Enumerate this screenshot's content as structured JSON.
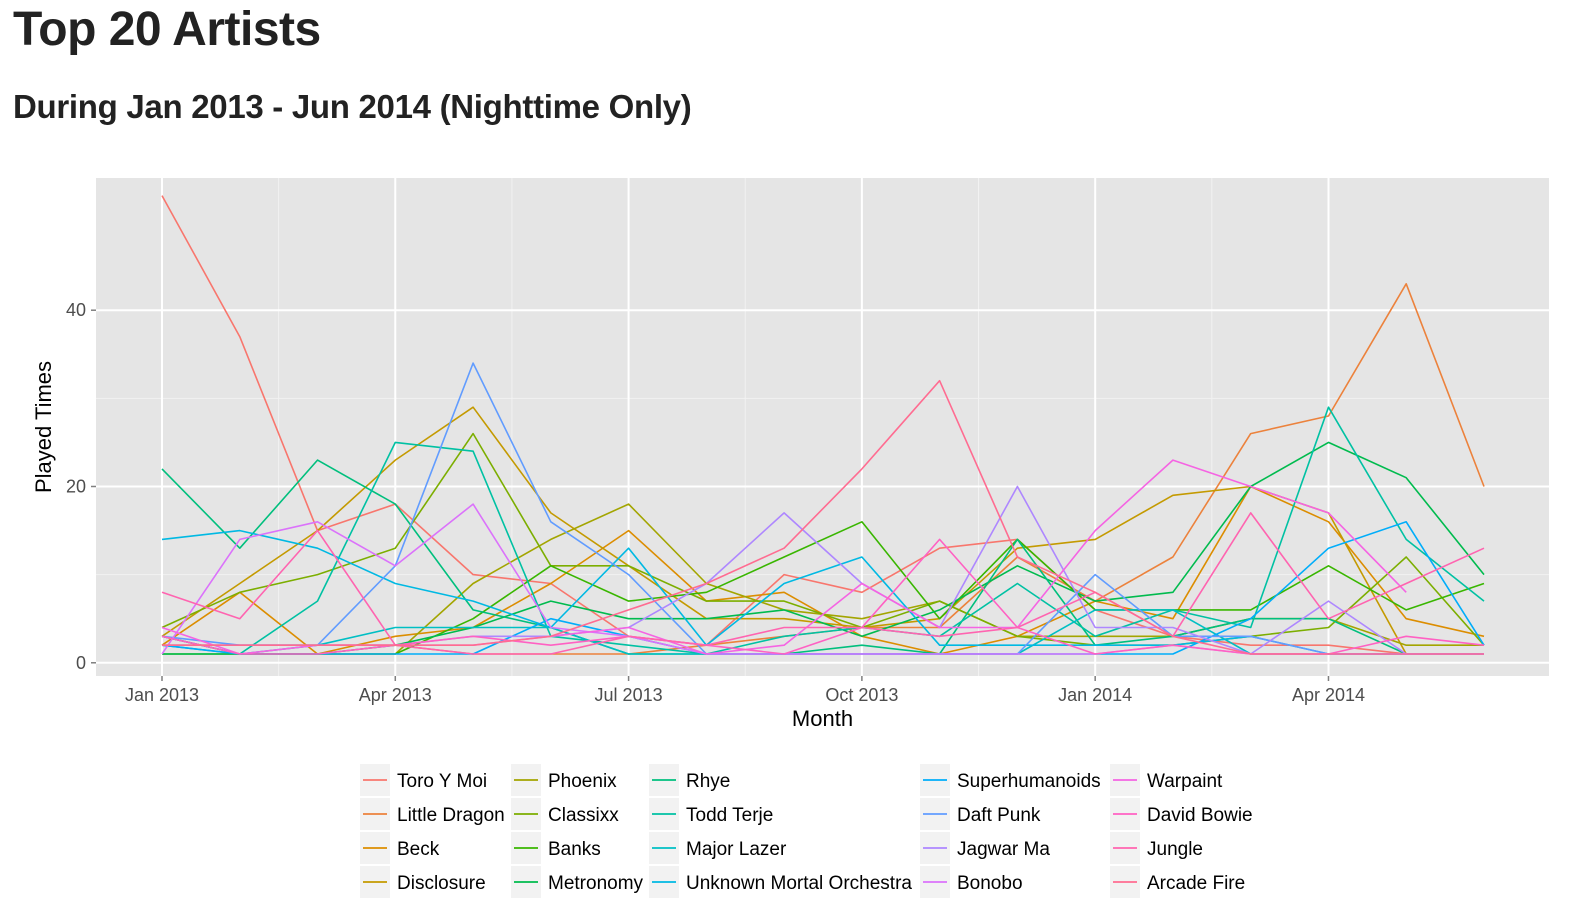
{
  "header": {
    "title": "Top 20 Artists",
    "subtitle": "During Jan 2013 - Jun 2014 (Nighttime Only)"
  },
  "chart_data": {
    "type": "line",
    "xlabel": "Month",
    "ylabel": "Played Times",
    "x": [
      "2013-01",
      "2013-02",
      "2013-03",
      "2013-04",
      "2013-05",
      "2013-06",
      "2013-07",
      "2013-08",
      "2013-09",
      "2013-10",
      "2013-11",
      "2013-12",
      "2014-01",
      "2014-02",
      "2014-03",
      "2014-04",
      "2014-05",
      "2014-06"
    ],
    "x_ticks": [
      {
        "value": "2013-01",
        "label": "Jan 2013"
      },
      {
        "value": "2013-04",
        "label": "Apr 2013"
      },
      {
        "value": "2013-07",
        "label": "Jul 2013"
      },
      {
        "value": "2013-10",
        "label": "Oct 2013"
      },
      {
        "value": "2014-01",
        "label": "Jan 2014"
      },
      {
        "value": "2014-04",
        "label": "Apr 2014"
      }
    ],
    "y_ticks": [
      0,
      20,
      40
    ],
    "ylim": [
      -1.5,
      55
    ],
    "grid": true,
    "legend_position": "bottom",
    "series": [
      {
        "name": "Toro Y Moi",
        "color": "#F8766D",
        "values": [
          53,
          37,
          15,
          18,
          10,
          9,
          3,
          2,
          10,
          8,
          13,
          14,
          6,
          3,
          2,
          2,
          1,
          1
        ]
      },
      {
        "name": "Little Dragon",
        "color": "#EC823C",
        "values": [
          2,
          2,
          2,
          2,
          1,
          1,
          1,
          2,
          3,
          4,
          4,
          12,
          7,
          12,
          26,
          28,
          43,
          20
        ]
      },
      {
        "name": "Beck",
        "color": "#DC8D00",
        "values": [
          2,
          8,
          1,
          3,
          4,
          9,
          15,
          7,
          8,
          3,
          1,
          3,
          7,
          5,
          20,
          16,
          5,
          3
        ]
      },
      {
        "name": "Disclosure",
        "color": "#C49A00",
        "values": [
          3,
          9,
          15,
          23,
          29,
          17,
          11,
          5,
          5,
          4,
          5,
          13,
          14,
          19,
          20,
          17,
          1,
          1
        ]
      },
      {
        "name": "Phoenix",
        "color": "#A3A500",
        "values": [
          3,
          1,
          1,
          1,
          9,
          14,
          18,
          9,
          6,
          5,
          7,
          3,
          3,
          3,
          5,
          5,
          2,
          2
        ]
      },
      {
        "name": "Classixx",
        "color": "#7CAE00",
        "values": [
          4,
          8,
          10,
          13,
          26,
          11,
          11,
          7,
          7,
          4,
          7,
          3,
          2,
          2,
          3,
          4,
          12,
          2
        ]
      },
      {
        "name": "Banks",
        "color": "#39B600",
        "values": [
          1,
          1,
          1,
          1,
          5,
          11,
          7,
          8,
          12,
          16,
          5,
          14,
          6,
          6,
          6,
          11,
          6,
          9
        ]
      },
      {
        "name": "Metronomy",
        "color": "#00BB4E",
        "values": [
          1,
          1,
          1,
          2,
          4,
          7,
          5,
          5,
          6,
          3,
          6,
          11,
          7,
          8,
          20,
          25,
          21,
          10
        ]
      },
      {
        "name": "Rhye",
        "color": "#00BF7D",
        "values": [
          22,
          13,
          23,
          18,
          6,
          4,
          1,
          1,
          1,
          2,
          1,
          14,
          2,
          3,
          5,
          5,
          1,
          1
        ]
      },
      {
        "name": "Todd Terje",
        "color": "#00C1A3",
        "values": [
          3,
          1,
          7,
          25,
          24,
          3,
          2,
          1,
          3,
          4,
          3,
          9,
          3,
          6,
          4,
          29,
          14,
          7
        ]
      },
      {
        "name": "Major Lazer",
        "color": "#00BFC4",
        "values": [
          2,
          1,
          2,
          4,
          4,
          4,
          1,
          1,
          1,
          1,
          1,
          1,
          6,
          6,
          1,
          1,
          1,
          1
        ]
      },
      {
        "name": "Unknown Mortal Orchestra",
        "color": "#00B9E3",
        "values": [
          14,
          15,
          13,
          9,
          7,
          4,
          13,
          2,
          9,
          12,
          2,
          2,
          2,
          2,
          3,
          1,
          1,
          1
        ]
      },
      {
        "name": "Superhumanoids",
        "color": "#00ADFA",
        "values": [
          2,
          1,
          1,
          1,
          1,
          5,
          3,
          1,
          1,
          1,
          1,
          1,
          1,
          1,
          5,
          13,
          16,
          2
        ]
      },
      {
        "name": "Daft Punk",
        "color": "#619CFF",
        "values": [
          3,
          2,
          2,
          11,
          34,
          16,
          10,
          1,
          1,
          1,
          1,
          1,
          10,
          3,
          3,
          1,
          1,
          1
        ]
      },
      {
        "name": "Jagwar Ma",
        "color": "#AE87FF",
        "values": [
          2,
          2,
          2,
          2,
          3,
          3,
          4,
          9,
          17,
          9,
          4,
          20,
          4,
          4,
          1,
          7,
          1,
          1
        ]
      },
      {
        "name": "Bonobo",
        "color": "#DB72FB",
        "values": [
          1,
          14,
          16,
          11,
          18,
          4,
          3,
          1,
          1,
          1,
          1,
          1,
          1,
          2,
          1,
          1,
          1,
          1
        ]
      },
      {
        "name": "Warpaint",
        "color": "#F564E3",
        "values": [
          4,
          1,
          2,
          2,
          2,
          3,
          4,
          1,
          2,
          9,
          4,
          4,
          15,
          23,
          20,
          17,
          8,
          null
        ]
      },
      {
        "name": "David Bowie",
        "color": "#FF61C3",
        "values": [
          3,
          1,
          1,
          2,
          3,
          2,
          3,
          2,
          1,
          4,
          14,
          4,
          1,
          2,
          1,
          1,
          3,
          2
        ]
      },
      {
        "name": "Jungle",
        "color": "#FF64B0",
        "values": [
          8,
          5,
          15,
          2,
          1,
          1,
          3,
          2,
          4,
          4,
          3,
          4,
          8,
          3,
          17,
          5,
          9,
          13
        ]
      },
      {
        "name": "Arcade Fire",
        "color": "#FF6C91",
        "values": [
          2,
          2,
          2,
          2,
          2,
          3,
          6,
          9,
          13,
          22,
          32,
          12,
          8,
          3,
          1,
          1,
          1,
          1
        ]
      }
    ]
  }
}
